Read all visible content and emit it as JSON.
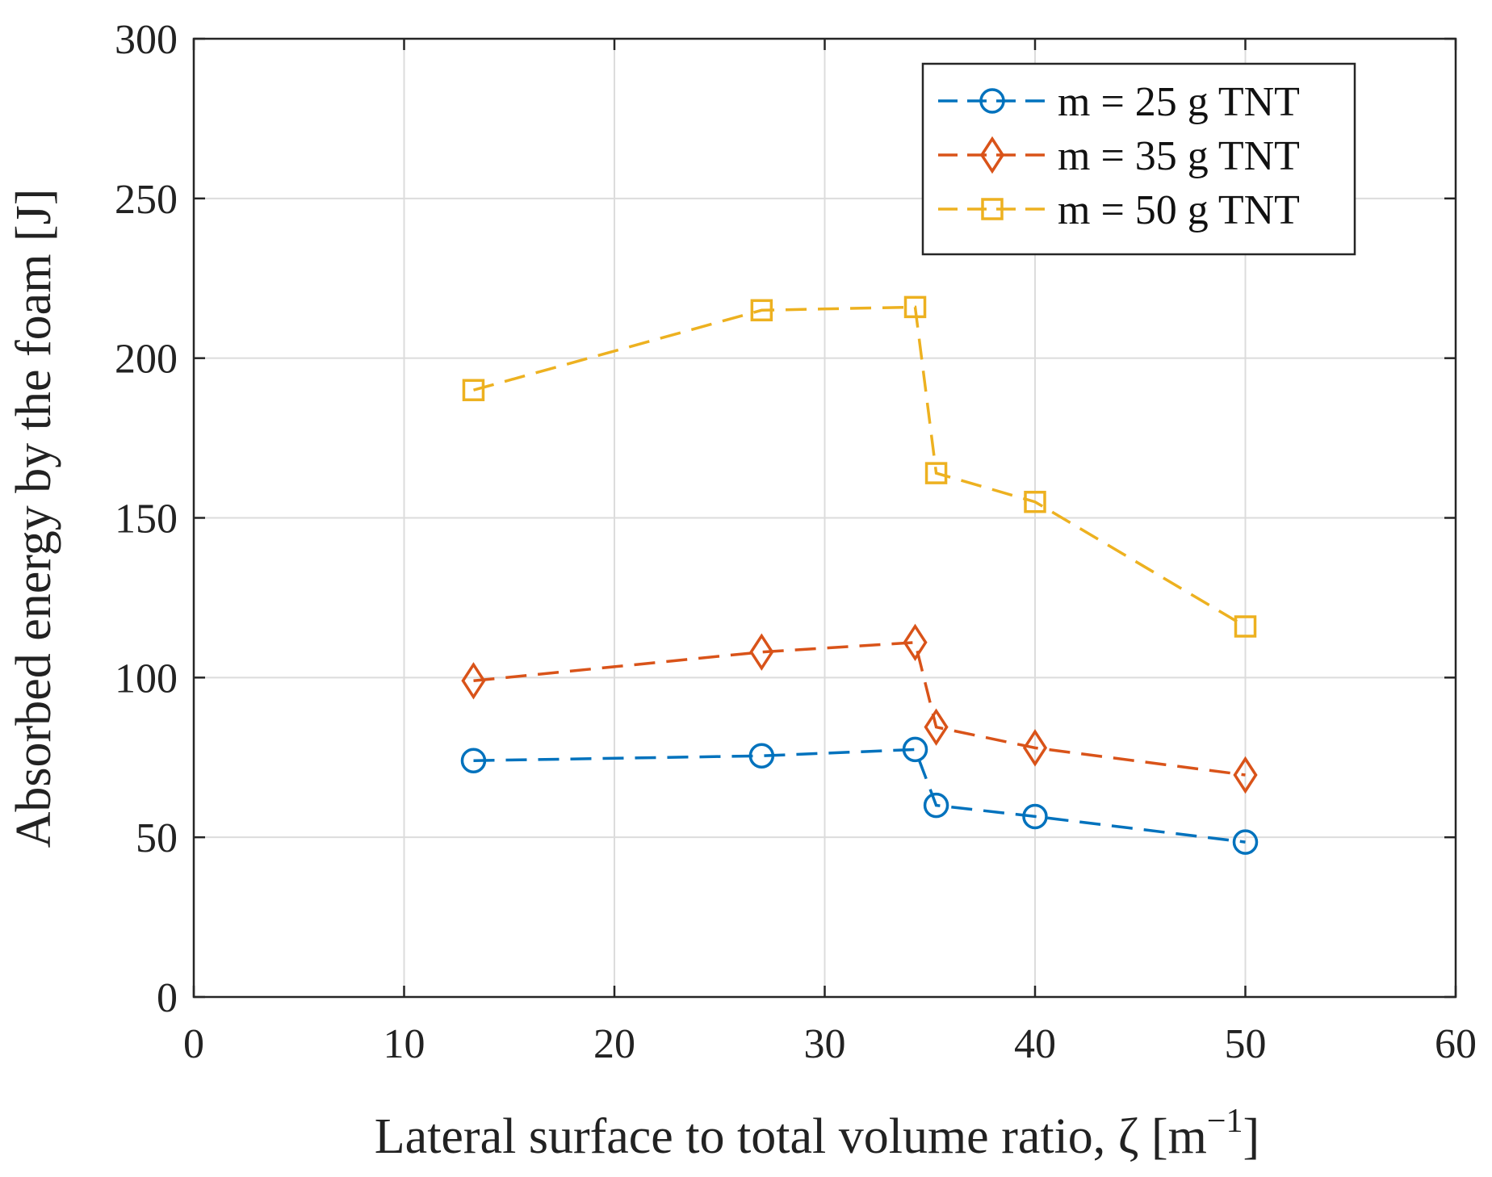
{
  "chart_data": {
    "type": "line",
    "title": "",
    "xlabel": "Lateral surface to total volume ratio, ζ [m",
    "xlabel_sup": "−1",
    "xlabel_close": "]",
    "ylabel": "Absorbed energy by the foam [J]",
    "xlim": [
      0,
      60
    ],
    "ylim": [
      0,
      300
    ],
    "xticks": [
      0,
      10,
      20,
      30,
      40,
      50,
      60
    ],
    "yticks": [
      0,
      50,
      100,
      150,
      200,
      250,
      300
    ],
    "grid": true,
    "legend_position": "top-right",
    "series": [
      {
        "name": "m = 25 g TNT",
        "color": "#0072BD",
        "marker": "circle",
        "x": [
          13.3,
          27.0,
          34.3,
          35.3,
          40.0,
          50.0
        ],
        "y": [
          74,
          75.5,
          77.5,
          60,
          56.5,
          48.5
        ]
      },
      {
        "name": "m = 35 g TNT",
        "color": "#D95319",
        "marker": "diamond",
        "x": [
          13.3,
          27.0,
          34.3,
          35.3,
          40.0,
          50.0
        ],
        "y": [
          99,
          108,
          111,
          84.5,
          78,
          69.5
        ]
      },
      {
        "name": "m = 50 g TNT",
        "color": "#EDB120",
        "marker": "square",
        "x": [
          13.3,
          27.0,
          34.3,
          35.3,
          40.0,
          50.0
        ],
        "y": [
          190,
          215,
          216,
          164,
          155,
          116
        ]
      }
    ]
  }
}
